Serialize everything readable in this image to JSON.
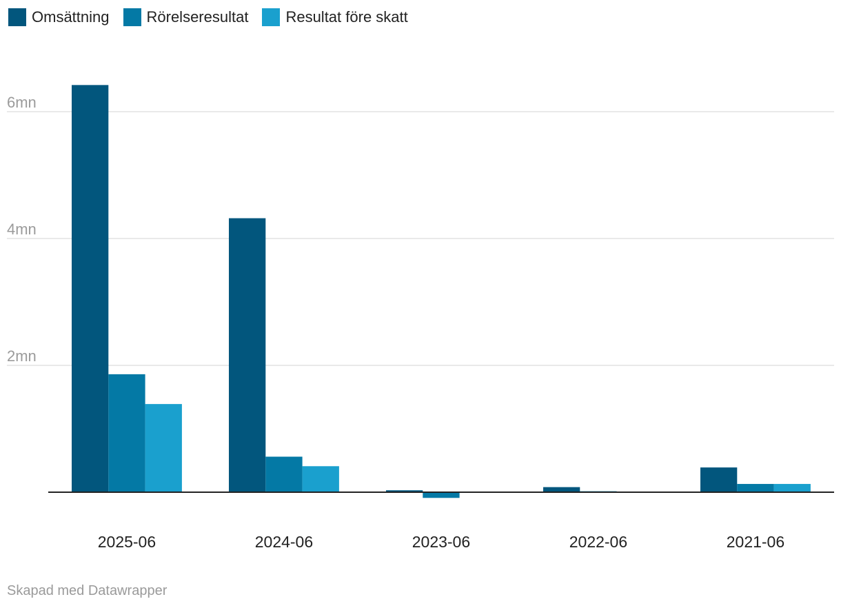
{
  "chart_data": {
    "type": "bar",
    "categories": [
      "2025-06",
      "2024-06",
      "2023-06",
      "2022-06",
      "2021-06"
    ],
    "series": [
      {
        "name": "Omsättning",
        "color": "#02567d",
        "values": [
          6420000,
          4320000,
          30000,
          80000,
          390000
        ]
      },
      {
        "name": "Rörelseresultat",
        "color": "#0479a5",
        "values": [
          1860000,
          560000,
          -90000,
          15000,
          130000
        ]
      },
      {
        "name": "Resultat före skatt",
        "color": "#1aa0ce",
        "values": [
          1390000,
          410000,
          0,
          10000,
          130000
        ]
      }
    ],
    "y_ticks": [
      {
        "value": 2000000,
        "label": "2mn"
      },
      {
        "value": 4000000,
        "label": "4mn"
      },
      {
        "value": 6000000,
        "label": "6mn"
      }
    ],
    "ylim": [
      -100000,
      6500000
    ],
    "grid": true,
    "legend_position": "top-left"
  },
  "footer": {
    "credit": "Skapad med Datawrapper"
  }
}
